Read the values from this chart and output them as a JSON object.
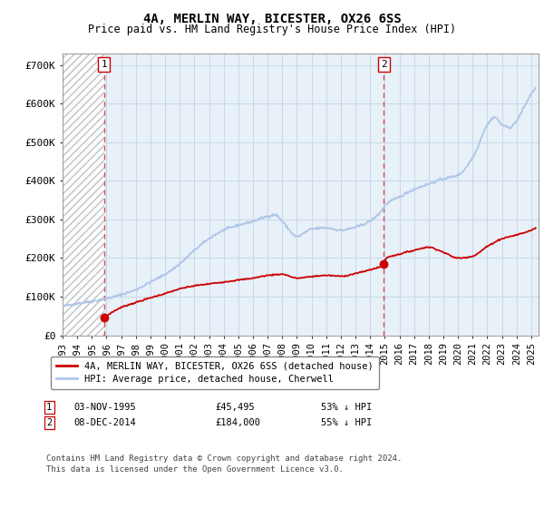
{
  "title": "4A, MERLIN WAY, BICESTER, OX26 6SS",
  "subtitle": "Price paid vs. HM Land Registry's House Price Index (HPI)",
  "ylabel_ticks": [
    "£0",
    "£100K",
    "£200K",
    "£300K",
    "£400K",
    "£500K",
    "£600K",
    "£700K"
  ],
  "ylim": [
    0,
    730000
  ],
  "ytick_values": [
    0,
    100000,
    200000,
    300000,
    400000,
    500000,
    600000,
    700000
  ],
  "xlim_start": 1993.0,
  "xlim_end": 2025.5,
  "hpi_color": "#aec6e8",
  "price_color": "#cc0000",
  "annotation_color": "#cc0000",
  "dashed_line_color": "#e05050",
  "grid_color": "#c8d8ea",
  "background_plot": "#e8f0f8",
  "legend_label_price": "4A, MERLIN WAY, BICESTER, OX26 6SS (detached house)",
  "legend_label_hpi": "HPI: Average price, detached house, Cherwell",
  "note1_label": "1",
  "note1_date": "03-NOV-1995",
  "note1_price": "£45,495",
  "note1_pct": "53% ↓ HPI",
  "note2_label": "2",
  "note2_date": "08-DEC-2014",
  "note2_price": "£184,000",
  "note2_pct": "55% ↓ HPI",
  "footnote": "Contains HM Land Registry data © Crown copyright and database right 2024.\nThis data is licensed under the Open Government Licence v3.0.",
  "sale1_year": 1995.84,
  "sale1_price": 45495,
  "sale2_year": 2014.92,
  "sale2_price": 184000,
  "hatch_end_year": 1995.84,
  "title_fontsize": 10,
  "subtitle_fontsize": 8.5,
  "tick_fontsize": 8,
  "legend_fontsize": 7.5,
  "note_fontsize": 7.5,
  "footnote_fontsize": 6.5
}
